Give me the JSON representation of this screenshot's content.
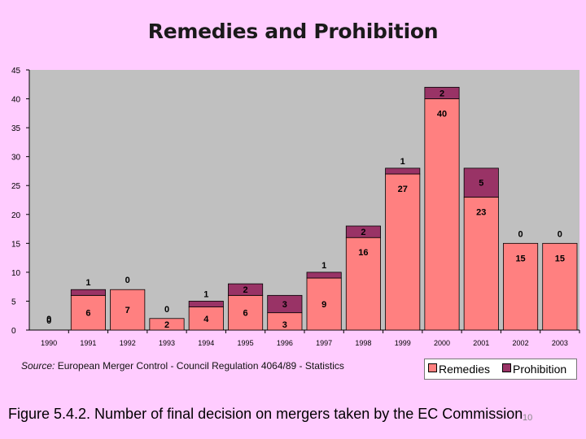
{
  "title": "Remedies and Prohibition",
  "source": {
    "label": "Source:",
    "text": "European Merger Control - Council Regulation 4064/89 - Statistics"
  },
  "caption": "Figure 5.4.2. Number of final decision on mergers taken by the EC Commission",
  "page_number": "10",
  "colors": {
    "plot_bg": "#C0C0C0",
    "remedies": "#FF8080",
    "prohibition": "#993366",
    "page_bg": "#FFCCFF"
  },
  "chart_data": {
    "type": "bar",
    "stacked": true,
    "title": "Remedies and Prohibition",
    "categories": [
      "1990",
      "1991",
      "1992",
      "1993",
      "1994",
      "1995",
      "1996",
      "1997",
      "1998",
      "1999",
      "2000",
      "2001",
      "2002",
      "2003"
    ],
    "series": [
      {
        "name": "Remedies",
        "values": [
          0,
          6,
          7,
          2,
          4,
          6,
          3,
          9,
          16,
          27,
          40,
          23,
          15,
          15
        ]
      },
      {
        "name": "Prohibition",
        "values": [
          0,
          1,
          0,
          0,
          1,
          2,
          3,
          1,
          2,
          1,
          2,
          5,
          0,
          0
        ]
      }
    ],
    "y_ticks": [
      "0",
      "5",
      "10",
      "15",
      "20",
      "25",
      "30",
      "35",
      "40",
      "45"
    ],
    "ylim": [
      0,
      45
    ],
    "grid": false,
    "legend": "bottom-right"
  }
}
